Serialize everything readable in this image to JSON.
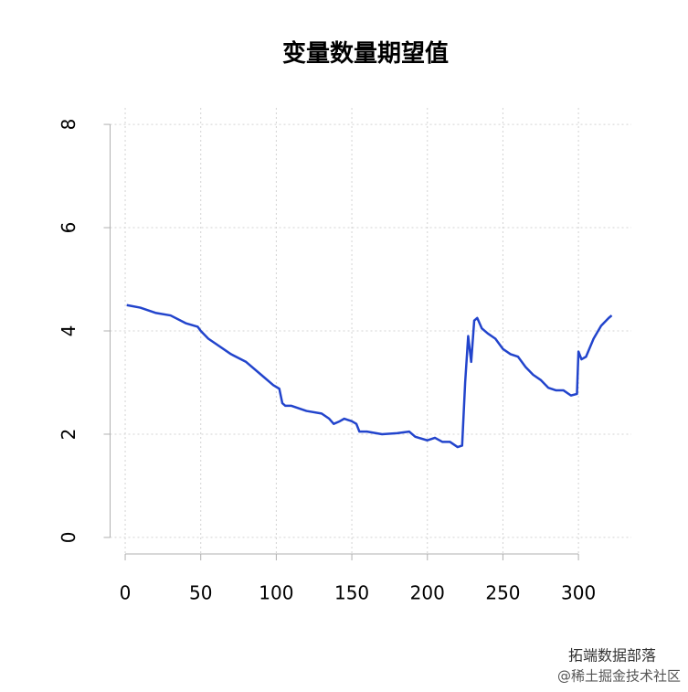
{
  "chart_data": {
    "type": "line",
    "title": "变量数量期望值",
    "x": [
      1,
      10,
      20,
      30,
      40,
      48,
      50,
      55,
      60,
      70,
      80,
      90,
      98,
      102,
      104,
      106,
      110,
      120,
      130,
      135,
      138,
      142,
      145,
      150,
      153,
      155,
      160,
      170,
      180,
      188,
      192,
      200,
      205,
      210,
      215,
      220,
      223,
      225,
      227,
      229,
      231,
      233,
      236,
      240,
      245,
      250,
      255,
      260,
      265,
      270,
      275,
      280,
      285,
      290,
      295,
      299,
      300,
      302,
      305,
      310,
      315,
      320,
      322
    ],
    "series": [
      {
        "color": "#2244cc",
        "values": [
          4.5,
          4.45,
          4.35,
          4.3,
          4.15,
          4.08,
          4.0,
          3.85,
          3.75,
          3.55,
          3.4,
          3.15,
          2.95,
          2.88,
          2.6,
          2.55,
          2.55,
          2.45,
          2.4,
          2.3,
          2.2,
          2.25,
          2.3,
          2.25,
          2.2,
          2.05,
          2.05,
          2.0,
          2.02,
          2.05,
          1.95,
          1.88,
          1.93,
          1.85,
          1.85,
          1.75,
          1.78,
          3.0,
          3.9,
          3.4,
          4.2,
          4.25,
          4.05,
          3.95,
          3.85,
          3.65,
          3.55,
          3.5,
          3.3,
          3.15,
          3.05,
          2.9,
          2.85,
          2.85,
          2.75,
          2.78,
          3.6,
          3.45,
          3.5,
          3.85,
          4.1,
          4.25,
          4.3
        ]
      }
    ],
    "xlim": [
      -10,
      335
    ],
    "ylim": [
      -0.32,
      8.32
    ],
    "xticks": [
      0,
      50,
      100,
      150,
      200,
      250,
      300
    ],
    "yticks": [
      0,
      2,
      4,
      6,
      8
    ],
    "grid": true,
    "watermark": [
      "拓端数据部落",
      "@稀土掘金技术社区"
    ]
  }
}
